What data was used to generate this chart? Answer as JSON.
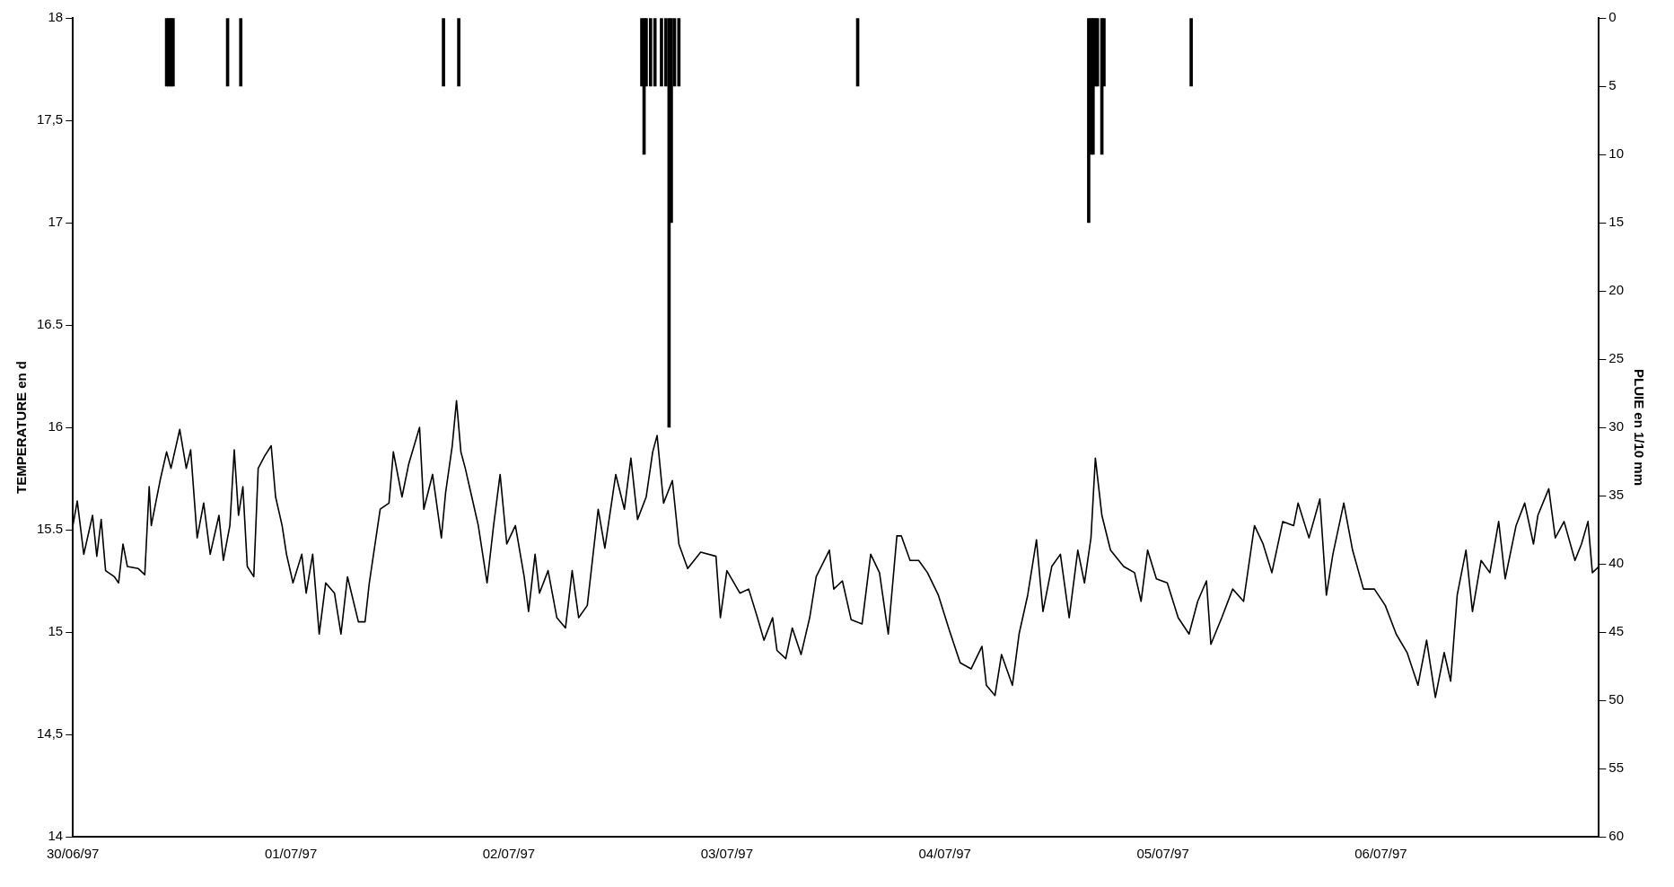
{
  "chart_data": {
    "type": "line",
    "ylabel": "TEMPERATURE en d",
    "y2label": "PLUIE en 1/10 mm",
    "xlim": [
      "1997-06-30",
      "1997-07-07"
    ],
    "xticks": [
      {
        "value": "1997-06-30",
        "label": "30/06/97"
      },
      {
        "value": "1997-07-01",
        "label": "01/07/97"
      },
      {
        "value": "1997-07-02",
        "label": "02/07/97"
      },
      {
        "value": "1997-07-03",
        "label": "03/07/97"
      },
      {
        "value": "1997-07-04",
        "label": "04/07/97"
      },
      {
        "value": "1997-07-05",
        "label": "05/07/97"
      },
      {
        "value": "1997-07-06",
        "label": "06/07/97"
      }
    ],
    "ylim": [
      14,
      18
    ],
    "yticks": [
      14,
      {
        "value": 14.5,
        "label": "14,5"
      },
      15,
      15.5,
      16,
      16.5,
      17,
      {
        "value": 17.5,
        "label": "17,5"
      },
      18
    ],
    "y2lim": [
      60,
      0
    ],
    "y2ticks": [
      0,
      5,
      10,
      15,
      20,
      25,
      30,
      35,
      40,
      45,
      50,
      55,
      60
    ],
    "grid": false,
    "legend": false,
    "marker": "none",
    "line_style": "solid",
    "series": [
      {
        "color": "#000000",
        "x": [
          "1997-06-30T00:00",
          "1997-06-30T00:29",
          "1997-06-30T01:12",
          "1997-06-30T02:10",
          "1997-06-30T02:38",
          "1997-06-30T03:07",
          "1997-06-30T03:36",
          "1997-06-30T04:34",
          "1997-06-30T05:02",
          "1997-06-30T05:31",
          "1997-06-30T06:00",
          "1997-06-30T07:12",
          "1997-06-30T07:55",
          "1997-06-30T08:24",
          "1997-06-30T08:38",
          "1997-06-30T09:36",
          "1997-06-30T10:19",
          "1997-06-30T10:48",
          "1997-06-30T11:46",
          "1997-06-30T12:29",
          "1997-06-30T12:58",
          "1997-06-30T13:41",
          "1997-06-30T14:24",
          "1997-06-30T15:07",
          "1997-06-30T16:05",
          "1997-06-30T16:34",
          "1997-06-30T17:17",
          "1997-06-30T17:46",
          "1997-06-30T18:14",
          "1997-06-30T18:43",
          "1997-06-30T19:12",
          "1997-06-30T19:55",
          "1997-06-30T20:24",
          "1997-06-30T21:07",
          "1997-06-30T21:50",
          "1997-06-30T22:19",
          "1997-06-30T23:02",
          "1997-06-30T23:31",
          "1997-07-01T00:14",
          "1997-07-01T01:12",
          "1997-07-01T01:41",
          "1997-07-01T02:24",
          "1997-07-01T03:07",
          "1997-07-01T03:50",
          "1997-07-01T04:48",
          "1997-07-01T05:31",
          "1997-07-01T06:14",
          "1997-07-01T07:26",
          "1997-07-01T08:10",
          "1997-07-01T08:38",
          "1997-07-01T09:50",
          "1997-07-01T10:48",
          "1997-07-01T11:17",
          "1997-07-01T12:14",
          "1997-07-01T12:58",
          "1997-07-01T14:10",
          "1997-07-01T14:38",
          "1997-07-01T15:36",
          "1997-07-01T16:34",
          "1997-07-01T17:02",
          "1997-07-01T17:46",
          "1997-07-01T18:14",
          "1997-07-01T18:43",
          "1997-07-01T19:12",
          "1997-07-01T19:55",
          "1997-07-01T20:38",
          "1997-07-01T21:36",
          "1997-07-01T22:19",
          "1997-07-01T23:02",
          "1997-07-01T23:46",
          "1997-07-02T00:43",
          "1997-07-02T01:41",
          "1997-07-02T02:10",
          "1997-07-02T02:53",
          "1997-07-02T03:22",
          "1997-07-02T04:19",
          "1997-07-02T05:17",
          "1997-07-02T06:14",
          "1997-07-02T06:58",
          "1997-07-02T07:41",
          "1997-07-02T08:38",
          "1997-07-02T09:50",
          "1997-07-02T10:34",
          "1997-07-02T11:46",
          "1997-07-02T12:43",
          "1997-07-02T13:26",
          "1997-07-02T14:10",
          "1997-07-02T15:07",
          "1997-07-02T15:50",
          "1997-07-02T16:19",
          "1997-07-02T17:02",
          "1997-07-02T18:00",
          "1997-07-02T18:43",
          "1997-07-02T19:41",
          "1997-07-02T21:07",
          "1997-07-02T22:48",
          "1997-07-02T23:17",
          "1997-07-03T00:00",
          "1997-07-03T01:26",
          "1997-07-03T02:24",
          "1997-07-03T03:22",
          "1997-07-03T04:05",
          "1997-07-03T05:02",
          "1997-07-03T05:31",
          "1997-07-03T06:29",
          "1997-07-03T07:12",
          "1997-07-03T08:10",
          "1997-07-03T09:07",
          "1997-07-03T09:50",
          "1997-07-03T11:17",
          "1997-07-03T11:46",
          "1997-07-03T12:43",
          "1997-07-03T13:41",
          "1997-07-03T14:53",
          "1997-07-03T15:50",
          "1997-07-03T16:48",
          "1997-07-03T17:46",
          "1997-07-03T18:43",
          "1997-07-03T19:12",
          "1997-07-03T20:10",
          "1997-07-03T21:07",
          "1997-07-03T22:05",
          "1997-07-03T23:17",
          "1997-07-04T00:29",
          "1997-07-04T01:41",
          "1997-07-04T02:53",
          "1997-07-04T04:05",
          "1997-07-04T04:34",
          "1997-07-04T05:31",
          "1997-07-04T06:14",
          "1997-07-04T07:26",
          "1997-07-04T08:10",
          "1997-07-04T09:07",
          "1997-07-04T10:05",
          "1997-07-04T10:48",
          "1997-07-04T11:46",
          "1997-07-04T12:43",
          "1997-07-04T13:41",
          "1997-07-04T14:38",
          "1997-07-04T15:22",
          "1997-07-04T16:05",
          "1997-07-04T16:34",
          "1997-07-04T17:17",
          "1997-07-04T18:14",
          "1997-07-04T19:41",
          "1997-07-04T20:53",
          "1997-07-04T21:36",
          "1997-07-04T22:19",
          "1997-07-04T23:17",
          "1997-07-05T00:29",
          "1997-07-05T01:41",
          "1997-07-05T02:53",
          "1997-07-05T03:50",
          "1997-07-05T04:48",
          "1997-07-05T05:17",
          "1997-07-05T06:29",
          "1997-07-05T07:41",
          "1997-07-05T08:53",
          "1997-07-05T10:05",
          "1997-07-05T11:02",
          "1997-07-05T12:00",
          "1997-07-05T13:12",
          "1997-07-05T14:24",
          "1997-07-05T14:53",
          "1997-07-05T16:05",
          "1997-07-05T17:17",
          "1997-07-05T18:00",
          "1997-07-05T18:43",
          "1997-07-05T19:55",
          "1997-07-05T20:53",
          "1997-07-05T22:05",
          "1997-07-05T23:17",
          "1997-07-06T00:29",
          "1997-07-06T01:41",
          "1997-07-06T02:53",
          "1997-07-06T04:05",
          "1997-07-06T05:02",
          "1997-07-06T06:00",
          "1997-07-06T06:58",
          "1997-07-06T07:41",
          "1997-07-06T08:24",
          "1997-07-06T09:22",
          "1997-07-06T10:05",
          "1997-07-06T11:02",
          "1997-07-06T12:00",
          "1997-07-06T12:58",
          "1997-07-06T13:41",
          "1997-07-06T14:53",
          "1997-07-06T15:50",
          "1997-07-06T16:48",
          "1997-07-06T17:17",
          "1997-07-06T18:29",
          "1997-07-06T19:12",
          "1997-07-06T20:10",
          "1997-07-06T21:22",
          "1997-07-06T22:05",
          "1997-07-06T22:48",
          "1997-07-06T23:17",
          "1997-07-07T00:00"
        ],
        "values": [
          15.52,
          15.64,
          15.38,
          15.57,
          15.37,
          15.55,
          15.3,
          15.27,
          15.24,
          15.43,
          15.32,
          15.31,
          15.28,
          15.71,
          15.52,
          15.74,
          15.88,
          15.8,
          15.99,
          15.8,
          15.89,
          15.46,
          15.63,
          15.38,
          15.57,
          15.35,
          15.52,
          15.89,
          15.57,
          15.71,
          15.32,
          15.27,
          15.8,
          15.86,
          15.91,
          15.66,
          15.52,
          15.38,
          15.24,
          15.38,
          15.19,
          15.38,
          14.99,
          15.24,
          15.19,
          14.99,
          15.27,
          15.05,
          15.05,
          15.24,
          15.6,
          15.63,
          15.88,
          15.66,
          15.82,
          16,
          15.6,
          15.77,
          15.46,
          15.68,
          15.91,
          16.13,
          15.88,
          15.8,
          15.66,
          15.52,
          15.24,
          15.52,
          15.77,
          15.43,
          15.52,
          15.27,
          15.1,
          15.38,
          15.19,
          15.3,
          15.07,
          15.02,
          15.3,
          15.07,
          15.13,
          15.6,
          15.41,
          15.77,
          15.6,
          15.85,
          15.55,
          15.66,
          15.88,
          15.96,
          15.63,
          15.74,
          15.43,
          15.31,
          15.39,
          15.37,
          15.07,
          15.3,
          15.19,
          15.21,
          15.07,
          14.96,
          15.07,
          14.91,
          14.87,
          15.02,
          14.89,
          15.07,
          15.27,
          15.4,
          15.21,
          15.25,
          15.06,
          15.04,
          15.38,
          15.29,
          14.99,
          15.47,
          15.47,
          15.35,
          15.35,
          15.29,
          15.18,
          15.01,
          14.85,
          14.82,
          14.93,
          14.74,
          14.69,
          14.89,
          14.74,
          14.99,
          15.18,
          15.45,
          15.1,
          15.32,
          15.38,
          15.07,
          15.4,
          15.24,
          15.46,
          15.85,
          15.57,
          15.4,
          15.32,
          15.29,
          15.15,
          15.4,
          15.26,
          15.24,
          15.07,
          14.99,
          15.15,
          15.25,
          14.94,
          15.07,
          15.21,
          15.15,
          15.52,
          15.43,
          15.29,
          15.54,
          15.52,
          15.63,
          15.46,
          15.65,
          15.18,
          15.38,
          15.63,
          15.4,
          15.21,
          15.21,
          15.13,
          14.99,
          14.9,
          14.74,
          14.96,
          14.68,
          14.9,
          14.76,
          15.18,
          15.4,
          15.1,
          15.35,
          15.29,
          15.54,
          15.26,
          15.52,
          15.63,
          15.43,
          15.57,
          15.7,
          15.46,
          15.54,
          15.35,
          15.43,
          15.54,
          15.29,
          15.32
        ]
      },
      {
        "type": "bar",
        "axis": "y2",
        "color": "#000000",
        "x": [
          "1997-06-30T10:19",
          "1997-06-30T10:34",
          "1997-06-30T10:48",
          "1997-06-30T11:02",
          "1997-06-30T17:02",
          "1997-06-30T18:29",
          "1997-07-01T16:48",
          "1997-07-01T18:29",
          "1997-07-02T14:38",
          "1997-07-02T14:53",
          "1997-07-02T15:07",
          "1997-07-02T15:36",
          "1997-07-02T16:05",
          "1997-07-02T16:48",
          "1997-07-02T17:17",
          "1997-07-02T17:38",
          "1997-07-02T17:53",
          "1997-07-02T18:14",
          "1997-07-02T18:43",
          "1997-07-03T14:24",
          "1997-07-04T15:50",
          "1997-07-04T16:05",
          "1997-07-04T16:19",
          "1997-07-04T16:34",
          "1997-07-04T16:48",
          "1997-07-04T17:17",
          "1997-07-04T17:31",
          "1997-07-05T03:07"
        ],
        "values": [
          5,
          5,
          5,
          5,
          5,
          5,
          5,
          5,
          5,
          10,
          5,
          5,
          5,
          5,
          5,
          30,
          15,
          5,
          5,
          5,
          15,
          10,
          10,
          5,
          5,
          10,
          5,
          5
        ]
      }
    ]
  }
}
